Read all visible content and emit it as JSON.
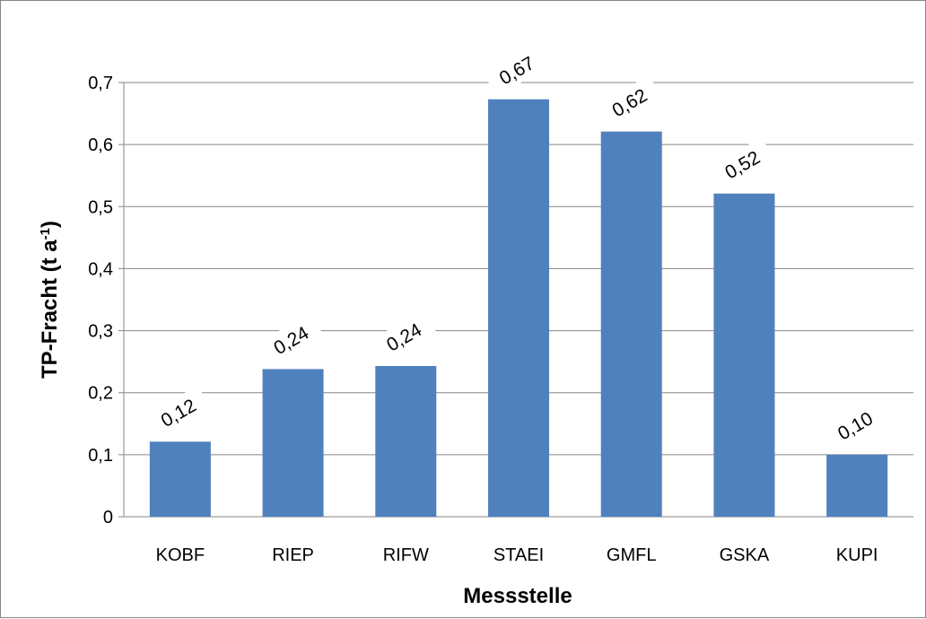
{
  "chart_data": {
    "type": "bar",
    "categories": [
      "KOBF",
      "RIEP",
      "RIFW",
      "STAEI",
      "GMFL",
      "GSKA",
      "KUPI"
    ],
    "values": [
      0.121,
      0.238,
      0.243,
      0.673,
      0.621,
      0.521,
      0.1
    ],
    "data_labels": [
      "0,12",
      "0,24",
      "0,24",
      "0,67",
      "0,62",
      "0,52",
      "0,10"
    ],
    "y_ticks": [
      "0",
      "0,1",
      "0,2",
      "0,3",
      "0,4",
      "0,5",
      "0,6",
      "0,7"
    ],
    "ylim": [
      0,
      0.7
    ],
    "xlabel": "Messstelle",
    "ylabel_main": "TP-Fracht  (t a",
    "ylabel_sup": "-1",
    "ylabel_close": ")",
    "grid": true,
    "legend": "none",
    "bar_color": "#4f81bd",
    "grid_color": "#868686"
  }
}
